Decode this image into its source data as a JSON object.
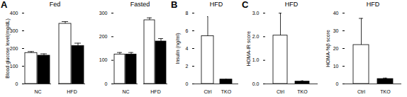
{
  "chart_data": [
    {
      "type": "bar",
      "panel": "A",
      "title": "Fed",
      "y_label": "Blood glucose level(mg/dL)",
      "categories": [
        "NC",
        "HFD"
      ],
      "series": [
        {
          "color": "#ffffff",
          "values": [
            175,
            340
          ],
          "errors": [
            8,
            12
          ]
        },
        {
          "color": "#000000",
          "values": [
            160,
            215
          ],
          "errors": [
            10,
            15
          ]
        }
      ],
      "ylim": [
        0,
        400
      ],
      "yticks": [
        0,
        100,
        200,
        300,
        400
      ]
    },
    {
      "type": "bar",
      "title": "Fasted",
      "categories": [
        "NC",
        "HFD"
      ],
      "series": [
        {
          "color": "#ffffff",
          "values": [
            125,
            270
          ],
          "errors": [
            8,
            10
          ]
        },
        {
          "color": "#000000",
          "values": [
            125,
            180
          ],
          "errors": [
            8,
            12
          ]
        }
      ],
      "ylim": [
        0,
        300
      ],
      "yticks": [
        0,
        100,
        200,
        300
      ]
    },
    {
      "type": "bar",
      "panel": "B",
      "title": "HFD",
      "y_label": "Insulin (ng/ml)",
      "categories": [
        "Ctrl",
        "TKO"
      ],
      "values": [
        5.4,
        0.5
      ],
      "errors": [
        2.2,
        0.05
      ],
      "colors": [
        "#ffffff",
        "#000000"
      ],
      "ylim": [
        0,
        8
      ],
      "yticks": [
        0,
        2,
        4,
        6,
        8
      ]
    },
    {
      "type": "bar",
      "panel": "C",
      "title": "HFD",
      "y_label": "HOMA-IR score",
      "categories": [
        "Ctrl",
        "TKO"
      ],
      "values": [
        2.05,
        0.1
      ],
      "errors": [
        0.95,
        0.03
      ],
      "colors": [
        "#ffffff",
        "#000000"
      ],
      "ylim": [
        0,
        3
      ],
      "yticks": [
        0,
        1,
        2,
        3
      ]
    },
    {
      "type": "bar",
      "title": "HFD",
      "y_label": "HOMA-%β score",
      "categories": [
        "Ctrl",
        "TKO"
      ],
      "values": [
        22,
        2.8
      ],
      "errors": [
        15,
        0.5
      ],
      "colors": [
        "#ffffff",
        "#000000"
      ],
      "ylim": [
        0,
        40
      ],
      "yticks": [
        0,
        10,
        20,
        30,
        40
      ]
    }
  ]
}
